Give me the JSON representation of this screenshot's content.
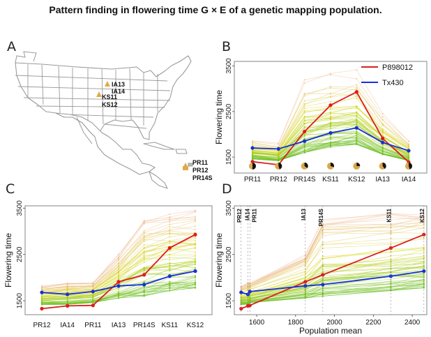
{
  "figure_title": "Pattern finding in flowering time G × E of a genetic mapping population.",
  "panel_letters": [
    "A",
    "B",
    "C",
    "D"
  ],
  "map": {
    "markers": [
      "IA13",
      "IA14",
      "KS11",
      "KS12",
      "PR11",
      "PR12",
      "PR14S"
    ],
    "marker_color": "#e0a94a",
    "state_fill": "#ffffff",
    "state_stroke": "#9a9a9a"
  },
  "colors": {
    "P898012": "#dd1c1c",
    "Tx430": "#1530d8",
    "family_high": "#f0b5a0",
    "family_mid": "#d8d820",
    "family_low": "#6cc02a"
  },
  "chart_data": [
    {
      "panel": "B",
      "type": "line",
      "categories": [
        "PR11",
        "PR12",
        "PR14S",
        "KS11",
        "KS12",
        "IA13",
        "IA14"
      ],
      "ylabel": "Flowering time",
      "yticks": [
        1500,
        2500,
        3500
      ],
      "ylim": [
        1150,
        3600
      ],
      "legend_position": "top-right",
      "series": [
        {
          "name": "P898012",
          "values": [
            1400,
            1330,
            2060,
            2640,
            2930,
            1910,
            1390
          ]
        },
        {
          "name": "Tx430",
          "values": [
            1700,
            1680,
            1850,
            2030,
            2140,
            1820,
            1640
          ]
        }
      ],
      "family_band": {
        "low": [
          1460,
          1420,
          1600,
          1720,
          1780,
          1560,
          1420
        ],
        "high": [
          1900,
          1820,
          3300,
          3400,
          3450,
          2500,
          1900
        ]
      },
      "pie_fractions": [
        0.5,
        0.45,
        0.35,
        0.3,
        0.25,
        0.4,
        0.45
      ]
    },
    {
      "panel": "C",
      "type": "line",
      "categories": [
        "PR12",
        "IA14",
        "PR11",
        "IA13",
        "PR14S",
        "KS11",
        "KS12"
      ],
      "ylabel": "Flowering time",
      "yticks": [
        1500,
        2500,
        3500
      ],
      "ylim": [
        1200,
        3550
      ],
      "series": [
        {
          "name": "P898012",
          "values": [
            1330,
            1390,
            1400,
            1910,
            2060,
            2640,
            2930
          ]
        },
        {
          "name": "Tx430",
          "values": [
            1680,
            1640,
            1700,
            1820,
            1850,
            2030,
            2140
          ]
        }
      ],
      "family_band": {
        "low": [
          1420,
          1420,
          1460,
          1560,
          1600,
          1720,
          1780
        ],
        "high": [
          1820,
          1900,
          1900,
          2500,
          3300,
          3400,
          3450
        ]
      }
    },
    {
      "panel": "D",
      "type": "line",
      "xlabel": "Population mean",
      "ylabel": "Flowering time",
      "xticks": [
        1600,
        1800,
        2000,
        2200,
        2400
      ],
      "yticks": [
        1500,
        2500,
        3500
      ],
      "xlim": [
        1485,
        2475
      ],
      "ylim": [
        1200,
        3550
      ],
      "environment_labels": [
        "PR12",
        "IA14",
        "PR11",
        "IA13",
        "PR14S",
        "KS11",
        "KS12"
      ],
      "x": [
        1520,
        1555,
        1565,
        1850,
        1940,
        2290,
        2460
      ],
      "series": [
        {
          "name": "P898012",
          "values": [
            1330,
            1390,
            1400,
            1910,
            2060,
            2640,
            2930
          ]
        },
        {
          "name": "Tx430",
          "values": [
            1680,
            1640,
            1700,
            1820,
            1850,
            2030,
            2140
          ]
        }
      ],
      "family_band": {
        "low": [
          1420,
          1420,
          1460,
          1560,
          1600,
          1720,
          1780
        ],
        "high": [
          1820,
          1900,
          1900,
          2500,
          3300,
          3400,
          3450
        ]
      }
    }
  ]
}
